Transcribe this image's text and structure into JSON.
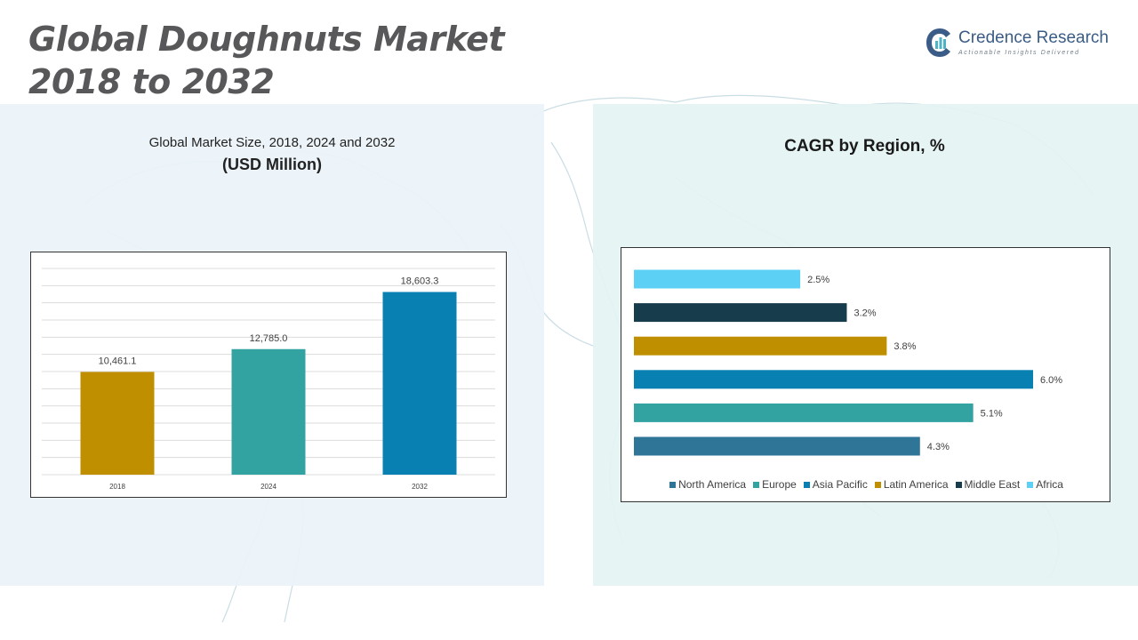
{
  "header": {
    "title_line1": "Global Doughnuts Market",
    "title_line2": "2018 to 2032"
  },
  "logo": {
    "name": "Credence Research",
    "tagline": "Actionable Insights Delivered",
    "icon": "credence-logo-icon"
  },
  "left_chart": {
    "title": "Global Market Size, 2018, 2024 and 2032",
    "subtitle": "(USD Million)"
  },
  "right_chart": {
    "title": "CAGR by Region, %"
  },
  "colors": {
    "gold": "#bf8f00",
    "teal": "#33a3a2",
    "blue": "#0880b2",
    "steel": "#2e7597",
    "navy": "#173c4c",
    "sky": "#5cd0f5"
  },
  "chart_data": [
    {
      "type": "bar",
      "title": "Global Market Size, 2018, 2024 and 2032",
      "subtitle": "(USD Million)",
      "categories": [
        "2018",
        "2024",
        "2032"
      ],
      "values": [
        10461.1,
        12785.0,
        18603.3
      ],
      "data_labels": [
        "10,461.1",
        "12,785.0",
        "18,603.3"
      ],
      "colors": [
        "#bf8f00",
        "#33a3a2",
        "#0880b2"
      ],
      "ylim": [
        0,
        21000
      ],
      "grid": true
    },
    {
      "type": "bar",
      "orientation": "horizontal",
      "title": "CAGR by Region, %",
      "categories": [
        "Africa",
        "Middle East",
        "Latin America",
        "Asia Pacific",
        "Europe",
        "North America"
      ],
      "values": [
        2.5,
        3.2,
        3.8,
        6.0,
        5.1,
        4.3
      ],
      "data_labels": [
        "2.5%",
        "3.2%",
        "3.8%",
        "6.0%",
        "5.1%",
        "4.3%"
      ],
      "colors": [
        "#5cd0f5",
        "#173c4c",
        "#bf8f00",
        "#0880b2",
        "#33a3a2",
        "#2e7597"
      ],
      "legend": [
        "North America",
        "Europe",
        "Asia Pacific",
        "Latin America",
        "Middle East",
        "Africa"
      ],
      "legend_colors": [
        "#2e7597",
        "#33a3a2",
        "#0880b2",
        "#bf8f00",
        "#173c4c",
        "#5cd0f5"
      ],
      "legend_position": "bottom",
      "xlim": [
        0,
        6.0
      ],
      "grid": false
    }
  ]
}
